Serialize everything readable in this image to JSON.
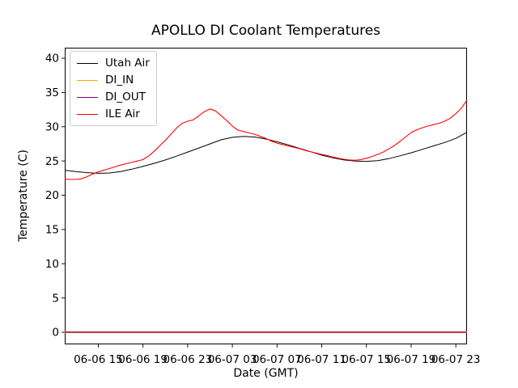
{
  "chart_data": {
    "type": "line",
    "title": "APOLLO DI Coolant Temperatures",
    "xlabel": "Date (GMT)",
    "ylabel": "Temperature (C)",
    "x_unit": "hours since 06-06 12:00 GMT",
    "xlim": [
      0,
      36
    ],
    "ylim": [
      -1.77,
      41.54
    ],
    "grid": false,
    "legend_position": "upper left",
    "yticks": [
      0,
      5,
      10,
      15,
      20,
      25,
      30,
      35,
      40
    ],
    "xticks": [
      {
        "pos": 3,
        "label": "06-06 15"
      },
      {
        "pos": 7,
        "label": "06-06 19"
      },
      {
        "pos": 11,
        "label": "06-06 23"
      },
      {
        "pos": 15,
        "label": "06-07 03"
      },
      {
        "pos": 19,
        "label": "06-07 07"
      },
      {
        "pos": 23,
        "label": "06-07 11"
      },
      {
        "pos": 27,
        "label": "06-07 15"
      },
      {
        "pos": 31,
        "label": "06-07 19"
      },
      {
        "pos": 35,
        "label": "06-07 23"
      }
    ],
    "series": [
      {
        "name": "Utah Air",
        "color": "#000000",
        "x": [
          0,
          1,
          2,
          3,
          4,
          5,
          6,
          7,
          8,
          9,
          10,
          11,
          12,
          13,
          14,
          15,
          16,
          17,
          18,
          19,
          20,
          21,
          22,
          23,
          24,
          25,
          26,
          27,
          28,
          29,
          30,
          31,
          32,
          33,
          34,
          35,
          36
        ],
        "values": [
          23.65,
          23.45,
          23.3,
          23.2,
          23.25,
          23.45,
          23.8,
          24.2,
          24.65,
          25.15,
          25.7,
          26.3,
          26.9,
          27.5,
          28.1,
          28.45,
          28.6,
          28.5,
          28.2,
          27.8,
          27.35,
          26.85,
          26.35,
          25.85,
          25.45,
          25.15,
          25.0,
          24.95,
          25.05,
          25.35,
          25.75,
          26.2,
          26.7,
          27.2,
          27.7,
          28.3,
          29.2
        ]
      },
      {
        "name": "DI_IN",
        "color": "#ffa500",
        "x": [
          0,
          36
        ],
        "values": [
          0.0,
          0.0
        ]
      },
      {
        "name": "DI_OUT",
        "color": "#800080",
        "x": [
          0,
          36
        ],
        "values": [
          0.0,
          0.0
        ]
      },
      {
        "name": "ILE Air",
        "color": "#ff0000",
        "x": [
          0,
          0.5,
          1,
          1.5,
          2,
          2.5,
          3,
          3.5,
          4,
          4.5,
          5,
          5.5,
          6,
          6.5,
          7,
          7.5,
          8,
          8.5,
          9,
          9.5,
          10,
          10.5,
          11,
          11.5,
          12,
          12.5,
          13,
          13.5,
          14,
          14.5,
          15,
          15.5,
          16,
          16.5,
          17,
          17.5,
          18,
          18.5,
          19,
          19.5,
          20,
          20.5,
          21,
          21.5,
          22,
          22.5,
          23,
          23.5,
          24,
          24.5,
          25,
          25.5,
          26,
          26.5,
          27,
          27.5,
          28,
          28.5,
          29,
          29.5,
          30,
          30.5,
          31,
          31.5,
          32,
          32.5,
          33,
          33.5,
          34,
          34.5,
          35,
          35.5,
          36
        ],
        "values": [
          22.35,
          22.3,
          22.3,
          22.4,
          22.7,
          23.1,
          23.4,
          23.65,
          23.9,
          24.15,
          24.4,
          24.6,
          24.8,
          25.0,
          25.2,
          25.7,
          26.4,
          27.2,
          28.0,
          28.9,
          29.8,
          30.5,
          30.8,
          31.0,
          31.6,
          32.2,
          32.6,
          32.3,
          31.6,
          30.9,
          30.1,
          29.5,
          29.3,
          29.1,
          28.9,
          28.6,
          28.3,
          27.9,
          27.6,
          27.4,
          27.2,
          27.0,
          26.8,
          26.55,
          26.35,
          26.15,
          25.95,
          25.8,
          25.6,
          25.4,
          25.25,
          25.15,
          25.1,
          25.2,
          25.4,
          25.65,
          25.95,
          26.3,
          26.75,
          27.25,
          27.85,
          28.5,
          29.15,
          29.55,
          29.85,
          30.1,
          30.3,
          30.5,
          30.8,
          31.25,
          31.9,
          32.7,
          33.9
        ]
      }
    ]
  }
}
